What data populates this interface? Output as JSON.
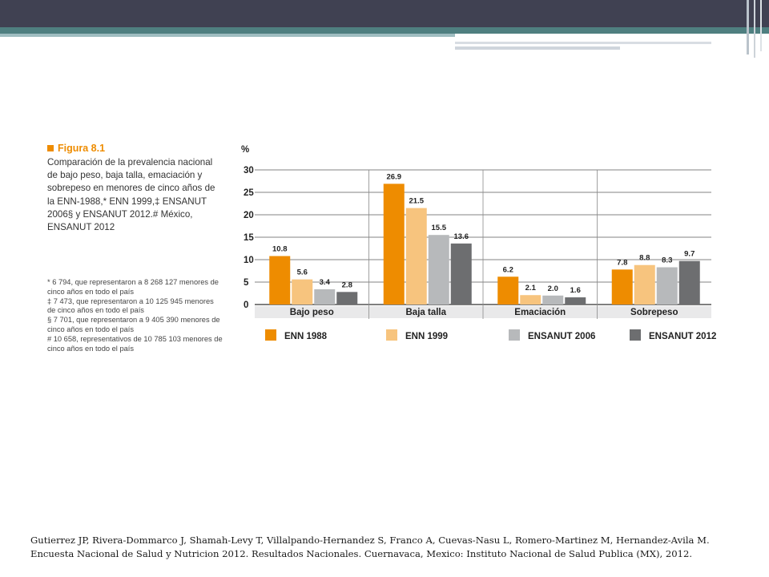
{
  "header": {
    "colors": {
      "dark_band": "#404152",
      "teal_band": "#4f7f80",
      "light_band": "#9fbdc0"
    }
  },
  "figure": {
    "title": "Figura 8.1",
    "description": "Comparación de la prevalencia nacional de bajo peso, baja talla, emaciación y sobrepeso en menores de cinco años de la ENN-1988,* ENN 1999,‡ ENSANUT 2006§ y ENSANUT 2012.# México, ENSANUT 2012",
    "notes": [
      "* 6 794, que representaron a 8 268 127 menores de cinco años en todo el país",
      "‡ 7 473, que representaron a 10 125 945 menores de cinco años en todo el país",
      "§ 7 701, que representaron a 9 405 390 menores de cinco años en todo el país",
      "# 10 658, representativos de 10 785 103 menores de cinco años en todo el país"
    ]
  },
  "chart_data": {
    "type": "bar",
    "ylabel": "%",
    "ylim": [
      0,
      30
    ],
    "yticks": [
      0,
      5,
      10,
      15,
      20,
      25,
      30
    ],
    "grid": true,
    "legend_position": "bottom",
    "categories": [
      "Bajo peso",
      "Baja talla",
      "Emaciación",
      "Sobrepeso"
    ],
    "series": [
      {
        "name": "ENN 1988",
        "color": "#ee8c00",
        "values": [
          10.8,
          26.9,
          6.2,
          7.8
        ]
      },
      {
        "name": "ENN 1999",
        "color": "#f7c47e",
        "values": [
          5.6,
          21.5,
          2.1,
          8.8
        ]
      },
      {
        "name": "ENSANUT 2006",
        "color": "#b7b9bb",
        "values": [
          3.4,
          15.5,
          2.0,
          8.3
        ]
      },
      {
        "name": "ENSANUT 2012",
        "color": "#6d6e70",
        "values": [
          2.8,
          13.6,
          1.6,
          9.7
        ]
      }
    ],
    "data_labels": [
      [
        "10.8",
        "26.9",
        "6.2",
        "7.8"
      ],
      [
        "5.6",
        "21.5",
        "2.1",
        "8.8"
      ],
      [
        "3.4",
        "15.5",
        "2.0",
        "8.3"
      ],
      [
        "2.8",
        "13.6",
        "1.6",
        "9.7"
      ]
    ]
  },
  "citation": "Gutierrez JP, Rivera-Dommarco J, Shamah-Levy T, Villalpando-Hernandez S, Franco A, Cuevas-Nasu L, Romero-Martinez M, Hernandez-Avila M. Encuesta Nacional de Salud y Nutricion 2012. Resultados Nacionales. Cuernavaca, Mexico: Instituto Nacional de Salud Publica (MX), 2012."
}
